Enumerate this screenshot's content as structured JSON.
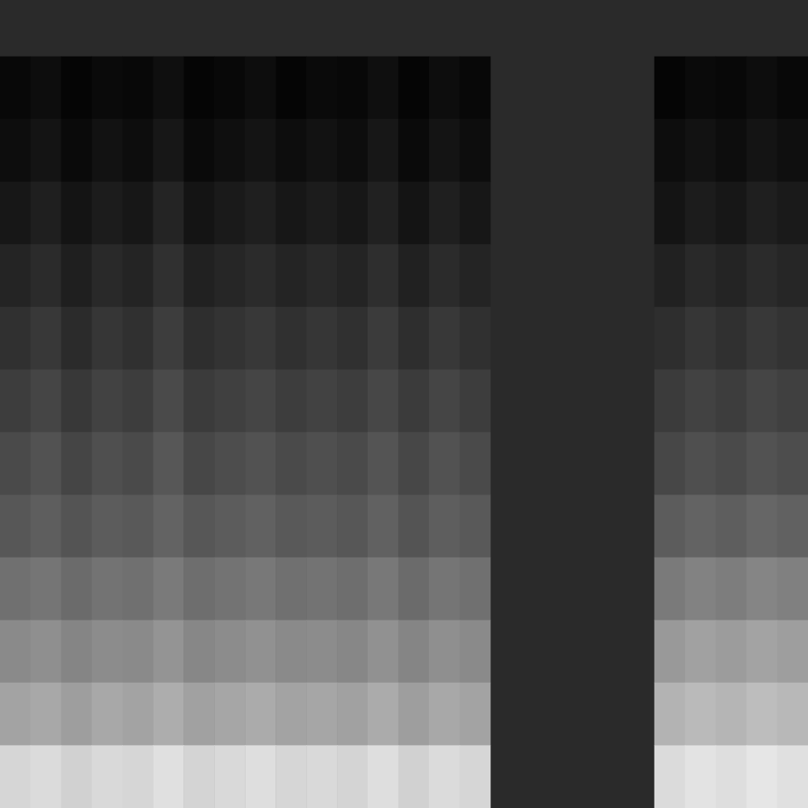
{
  "chart_data": [
    {
      "type": "heatmap",
      "tick_labels": false,
      "zlim": [
        0,
        100
      ],
      "cells": [
        [
          3,
          5,
          2,
          4,
          3,
          6,
          2,
          3,
          5,
          2,
          4,
          3,
          6,
          2,
          5,
          3
        ],
        [
          5,
          8,
          4,
          7,
          5,
          9,
          4,
          6,
          8,
          5,
          7,
          5,
          9,
          4,
          8,
          5
        ],
        [
          9,
          12,
          8,
          11,
          9,
          14,
          8,
          10,
          12,
          9,
          11,
          9,
          13,
          8,
          12,
          9
        ],
        [
          14,
          17,
          12,
          16,
          14,
          19,
          13,
          15,
          17,
          14,
          16,
          14,
          18,
          13,
          17,
          14
        ],
        [
          19,
          22,
          17,
          21,
          19,
          24,
          18,
          20,
          22,
          19,
          21,
          19,
          23,
          18,
          22,
          19
        ],
        [
          24,
          27,
          22,
          26,
          24,
          29,
          23,
          25,
          27,
          24,
          26,
          24,
          28,
          23,
          27,
          24
        ],
        [
          29,
          32,
          27,
          31,
          29,
          34,
          28,
          30,
          32,
          29,
          31,
          29,
          33,
          28,
          32,
          29
        ],
        [
          34,
          37,
          33,
          36,
          35,
          39,
          34,
          36,
          38,
          35,
          36,
          34,
          38,
          33,
          37,
          35
        ],
        [
          44,
          46,
          42,
          45,
          44,
          48,
          43,
          45,
          47,
          44,
          45,
          43,
          47,
          42,
          46,
          44
        ],
        [
          54,
          56,
          52,
          55,
          54,
          58,
          53,
          55,
          57,
          54,
          55,
          53,
          57,
          52,
          56,
          54
        ],
        [
          64,
          66,
          62,
          66,
          64,
          68,
          63,
          65,
          67,
          64,
          65,
          63,
          67,
          62,
          66,
          64
        ],
        [
          84,
          86,
          82,
          85,
          84,
          88,
          83,
          85,
          87,
          84,
          85,
          83,
          87,
          82,
          86,
          84
        ]
      ]
    },
    {
      "type": "heatmap",
      "tick_labels": false,
      "zlim": [
        0,
        100
      ],
      "cells": [
        [
          2,
          4,
          3,
          5,
          3
        ],
        [
          5,
          7,
          5,
          8,
          6
        ],
        [
          8,
          11,
          9,
          12,
          10
        ],
        [
          13,
          16,
          14,
          17,
          15
        ],
        [
          18,
          21,
          19,
          22,
          20
        ],
        [
          23,
          26,
          24,
          27,
          25
        ],
        [
          28,
          31,
          29,
          32,
          30
        ],
        [
          36,
          39,
          37,
          40,
          38
        ],
        [
          48,
          51,
          49,
          52,
          50
        ],
        [
          60,
          63,
          61,
          64,
          62
        ],
        [
          70,
          73,
          71,
          74,
          72
        ],
        [
          86,
          89,
          87,
          90,
          88
        ]
      ]
    }
  ]
}
